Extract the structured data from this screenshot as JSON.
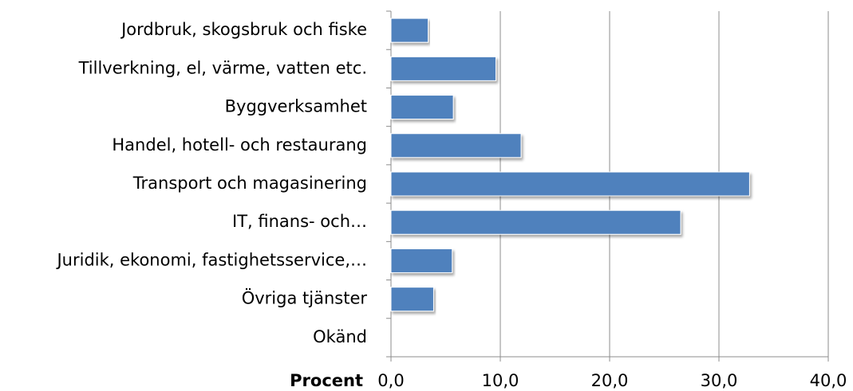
{
  "chart_data": {
    "type": "bar",
    "orientation": "horizontal",
    "x_label": "Procent",
    "categories": [
      "Jordbruk, skogsbruk och fiske",
      "Tillverkning, el, värme, vatten etc.",
      "Byggverksamhet",
      "Handel, hotell- och restaurang",
      "Transport och magasinering",
      "IT, finans- och…",
      "Juridik, ekonomi, fastighetsservice,…",
      "Övriga tjänster",
      "Okänd"
    ],
    "values": [
      3.4,
      9.6,
      5.7,
      11.9,
      32.8,
      26.5,
      5.6,
      3.9,
      0
    ],
    "color": "#4f81bd",
    "xlim": [
      0,
      40
    ],
    "xticks": [
      {
        "value": 0,
        "label": "0,0"
      },
      {
        "value": 10,
        "label": "10,0"
      },
      {
        "value": 20,
        "label": "20,0"
      },
      {
        "value": 30,
        "label": "30,0"
      },
      {
        "value": 40,
        "label": "40,0"
      }
    ],
    "grid": true
  }
}
